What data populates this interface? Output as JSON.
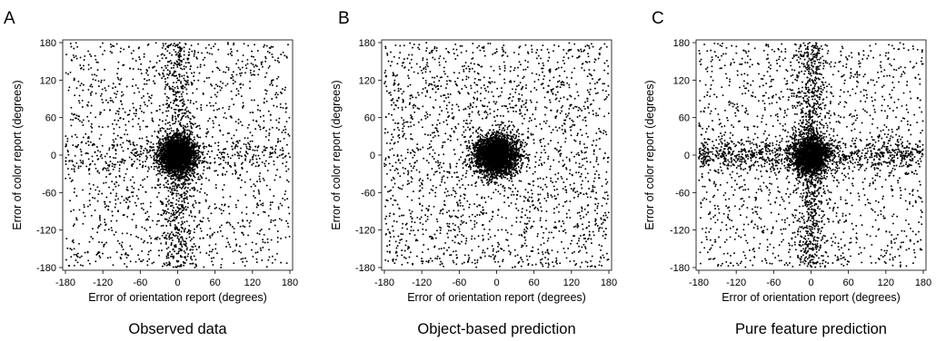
{
  "chart_data": [
    {
      "type": "scatter",
      "panel_letter": "A",
      "caption": "Observed data",
      "xlabel": "Error of orientation report (degrees)",
      "ylabel": "Error of color report (degrees)",
      "xlim": [
        -180,
        180
      ],
      "ylim": [
        -180,
        180
      ],
      "xticks": [
        -180,
        -120,
        -60,
        0,
        60,
        120,
        180
      ],
      "yticks": [
        180,
        120,
        60,
        0,
        -60,
        -120,
        -180
      ],
      "grid": false,
      "point_color": "#000000",
      "distribution": {
        "n_points": 5000,
        "uniform_fraction": 0.32,
        "joint_center_fraction": 0.48,
        "joint_center_sd": [
          15,
          16
        ],
        "vertical_band_fraction": 0.14,
        "vertical_band_sd": 14,
        "horizontal_band_fraction": 0.06,
        "horizontal_band_sd": 14
      }
    },
    {
      "type": "scatter",
      "panel_letter": "B",
      "caption": "Object-based prediction",
      "xlabel": "Error of orientation report (degrees)",
      "ylabel": "Error of color report (degrees)",
      "xlim": [
        -180,
        180
      ],
      "ylim": [
        -180,
        180
      ],
      "xticks": [
        -180,
        -120,
        -60,
        0,
        60,
        120,
        180
      ],
      "yticks": [
        180,
        120,
        60,
        0,
        -60,
        -120,
        -180
      ],
      "grid": false,
      "point_color": "#000000",
      "distribution": {
        "n_points": 5000,
        "uniform_fraction": 0.42,
        "joint_center_fraction": 0.58,
        "joint_center_sd": [
          17,
          16
        ],
        "vertical_band_fraction": 0,
        "vertical_band_sd": 14,
        "horizontal_band_fraction": 0,
        "horizontal_band_sd": 14
      }
    },
    {
      "type": "scatter",
      "panel_letter": "C",
      "caption": "Pure feature prediction",
      "xlabel": "Error of orientation report (degrees)",
      "ylabel": "Error of color report (degrees)",
      "xlim": [
        -180,
        180
      ],
      "ylim": [
        -180,
        180
      ],
      "xticks": [
        -180,
        -120,
        -60,
        0,
        60,
        120,
        180
      ],
      "yticks": [
        180,
        120,
        60,
        0,
        -60,
        -120,
        -180
      ],
      "grid": false,
      "point_color": "#000000",
      "distribution": {
        "n_points": 5000,
        "uniform_fraction": 0.3,
        "joint_center_fraction": 0.32,
        "joint_center_sd": [
          14,
          15
        ],
        "vertical_band_fraction": 0.19,
        "vertical_band_sd": 13,
        "horizontal_band_fraction": 0.19,
        "horizontal_band_sd": 13
      }
    }
  ]
}
